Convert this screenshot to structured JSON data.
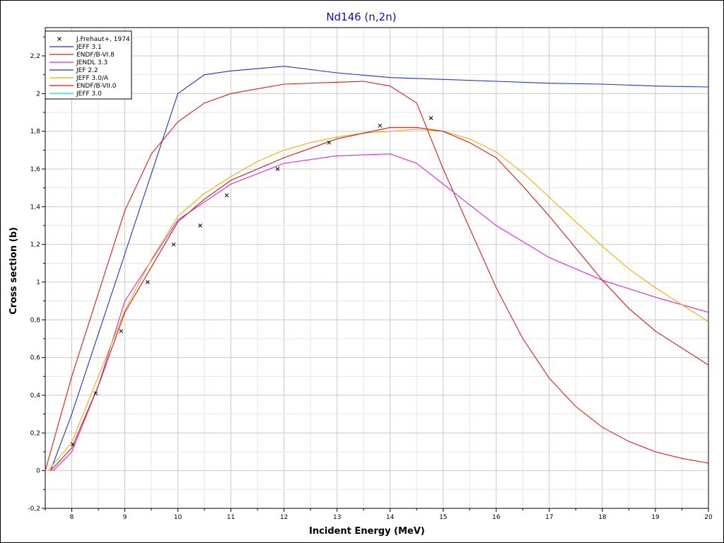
{
  "chart_data": {
    "type": "scatter",
    "title": "Nd146 (n,2n)",
    "xlabel": "Incident Energy (MeV)",
    "ylabel": "Cross section (b)",
    "xlim": [
      7.5,
      20
    ],
    "ylim": [
      -0.2,
      2.35
    ],
    "grid": true,
    "legend_position": "top-left",
    "x_ticks": [
      8,
      9,
      10,
      11,
      12,
      13,
      14,
      15,
      16,
      17,
      18,
      19,
      20
    ],
    "x_tick_labels": [
      "8",
      "9",
      "10",
      "11",
      "12",
      "13",
      "14",
      "15",
      "16",
      "17",
      "18",
      "19",
      "20"
    ],
    "y_ticks": [
      -0.2,
      0,
      0.2,
      0.4,
      0.6,
      0.8,
      1,
      1.2,
      1.4,
      1.6,
      1.8,
      2,
      2.2
    ],
    "y_tick_labels": [
      "-0,2",
      "0",
      "0,2",
      "0,4",
      "0,6",
      "0,8",
      "1",
      "1,2",
      "1,4",
      "1,6",
      "1,8",
      "2",
      "2,2"
    ],
    "series": [
      {
        "name": "J.Frehaut+, 1974",
        "kind": "marker",
        "color": "#000000",
        "x": [
          8.02,
          8.45,
          8.93,
          9.43,
          9.92,
          10.42,
          10.92,
          11.88,
          12.85,
          13.81,
          14.77
        ],
        "y": [
          0.14,
          0.41,
          0.74,
          1.0,
          1.2,
          1.3,
          1.46,
          1.6,
          1.74,
          1.83,
          1.87
        ]
      },
      {
        "name": "JEFF 3.1",
        "kind": "line",
        "color": "#1f2fd0",
        "x": [
          7.6,
          8.0,
          9.0,
          10.0,
          10.5,
          11.0,
          12.0,
          13.0,
          14.0,
          15.0,
          16.0,
          17.0,
          18.0,
          19.0,
          20.0
        ],
        "y": [
          0.0,
          0.3,
          1.15,
          2.0,
          2.1,
          2.12,
          2.145,
          2.11,
          2.085,
          2.075,
          2.065,
          2.055,
          2.05,
          2.04,
          2.035
        ]
      },
      {
        "name": "ENDF/B-VI.8",
        "kind": "line",
        "color": "#dd1a1a",
        "x": [
          7.5,
          8.0,
          9.0,
          9.5,
          10.0,
          10.5,
          11.0,
          12.0,
          13.0,
          13.5,
          14.0,
          14.5,
          15.0,
          16.0,
          16.5,
          17.0,
          17.5,
          18.0,
          18.5,
          19.0,
          19.5,
          20.0
        ],
        "y": [
          0.0,
          0.5,
          1.38,
          1.68,
          1.85,
          1.95,
          2.0,
          2.05,
          2.06,
          2.065,
          2.04,
          1.95,
          1.6,
          0.97,
          0.7,
          0.49,
          0.34,
          0.23,
          0.155,
          0.1,
          0.065,
          0.04
        ]
      },
      {
        "name": "JENDL 3.3",
        "kind": "line",
        "color": "#e020e0",
        "x": [
          7.65,
          8.0,
          8.5,
          9.0,
          10.0,
          11.0,
          12.0,
          13.0,
          14.0,
          14.5,
          15.0,
          16.0,
          17.0,
          18.0,
          19.0,
          20.0
        ],
        "y": [
          0.0,
          0.1,
          0.45,
          0.9,
          1.33,
          1.52,
          1.63,
          1.67,
          1.68,
          1.63,
          1.52,
          1.3,
          1.13,
          1.01,
          0.92,
          0.84
        ]
      },
      {
        "name": "JEF 2.2",
        "kind": "line",
        "color": "#3030a0",
        "x": [],
        "y": []
      },
      {
        "name": "JEFF 3.0/A",
        "kind": "line",
        "color": "#f0b000",
        "x": [
          7.55,
          8.0,
          8.5,
          9.0,
          9.5,
          10.0,
          10.5,
          11.0,
          11.5,
          12.0,
          12.5,
          13.0,
          13.5,
          14.0,
          14.5,
          15.0,
          15.5,
          16.0,
          16.5,
          17.0,
          17.5,
          18.0,
          18.5,
          19.0,
          19.5,
          20.0
        ],
        "y": [
          0.0,
          0.15,
          0.5,
          0.85,
          1.12,
          1.35,
          1.47,
          1.56,
          1.64,
          1.7,
          1.74,
          1.77,
          1.79,
          1.8,
          1.81,
          1.8,
          1.76,
          1.69,
          1.58,
          1.45,
          1.32,
          1.19,
          1.07,
          0.97,
          0.88,
          0.79
        ]
      },
      {
        "name": "ENDF/B-VII.0",
        "kind": "line",
        "color": "#d01818",
        "x": [
          7.6,
          8.0,
          8.5,
          9.0,
          9.5,
          10.0,
          10.5,
          11.0,
          11.5,
          12.0,
          12.5,
          13.0,
          13.5,
          14.0,
          14.5,
          15.0,
          15.5,
          16.0,
          16.5,
          17.0,
          17.5,
          18.0,
          18.5,
          19.0,
          19.5,
          20.0
        ],
        "y": [
          0.0,
          0.12,
          0.45,
          0.84,
          1.08,
          1.32,
          1.44,
          1.54,
          1.6,
          1.66,
          1.71,
          1.76,
          1.79,
          1.82,
          1.82,
          1.8,
          1.74,
          1.66,
          1.51,
          1.35,
          1.18,
          1.01,
          0.86,
          0.74,
          0.65,
          0.56
        ]
      },
      {
        "name": "JEFF 3.0",
        "kind": "line",
        "color": "#20d0d0",
        "x": [],
        "y": []
      }
    ]
  }
}
